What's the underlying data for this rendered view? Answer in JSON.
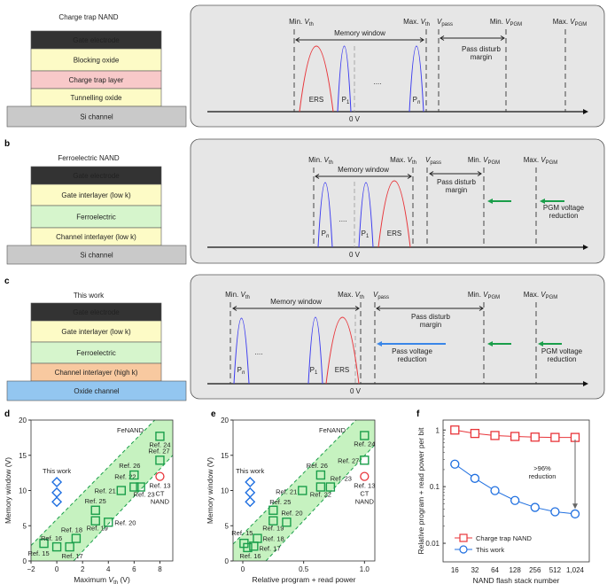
{
  "colors": {
    "panel_bg": "#e6e6e6",
    "ers": "#e8353a",
    "program": "#3b3bf0",
    "fe": "#1a9e4a",
    "this_work": "#1f6fe0",
    "ct_nand": "#e8353a",
    "band": "#c6f2c0",
    "pass_arrow": "#3a86e8"
  },
  "panels": {
    "a": {
      "letter": "a",
      "stack_title": "Charge trap NAND",
      "layers": [
        {
          "label": "Gate electrode",
          "color": "#333333"
        },
        {
          "label": "Blocking oxide",
          "color": "#fdfbc6"
        },
        {
          "label": "Charge trap layer",
          "color": "#f8c9c9"
        },
        {
          "label": "Tunnelling oxide",
          "color": "#fdfbc6"
        },
        {
          "label": "Si channel",
          "color": "#c9c9c9"
        }
      ],
      "thresholds": [
        {
          "pre": "Min. ",
          "v": "V",
          "sub": "th"
        },
        {
          "pre": "Max. ",
          "v": "V",
          "sub": "th"
        },
        {
          "pre": "",
          "v": "V",
          "sub": "pass"
        },
        {
          "pre": "Min. ",
          "v": "V",
          "sub": "PGM"
        },
        {
          "pre": "Max. ",
          "v": "V",
          "sub": "PGM"
        }
      ],
      "memory_window": "Memory window",
      "pass_disturb": [
        "Pass disturb",
        "margin"
      ],
      "states": {
        "ers": "ERS",
        "p1": {
          "p": "P",
          "sub": "1"
        },
        "pn": {
          "p": "P",
          "sub": "n"
        },
        "dots": "...."
      },
      "zero": "0 V"
    },
    "b": {
      "letter": "b",
      "stack_title": "Ferroelectric NAND",
      "layers": [
        {
          "label": "Gate electrode",
          "color": "#333333"
        },
        {
          "label": "Gate interlayer (low k)",
          "color": "#fdfbc6"
        },
        {
          "label": "Ferroelectric",
          "color": "#d6f5cc"
        },
        {
          "label": "Channel interlayer (low k)",
          "color": "#fdfbc6"
        },
        {
          "label": "Si channel",
          "color": "#c9c9c9"
        }
      ],
      "thresholds": [
        {
          "pre": "Min. ",
          "v": "V",
          "sub": "th"
        },
        {
          "pre": "Max. ",
          "v": "V",
          "sub": "th"
        },
        {
          "pre": "",
          "v": "V",
          "sub": "pass"
        },
        {
          "pre": "Min. ",
          "v": "V",
          "sub": "PGM"
        },
        {
          "pre": "Max. ",
          "v": "V",
          "sub": "PGM"
        }
      ],
      "memory_window": "Memory window",
      "pass_disturb": [
        "Pass disturb",
        "margin"
      ],
      "pgm_reduction": [
        "PGM voltage",
        "reduction"
      ],
      "states": {
        "ers": "ERS",
        "p1": {
          "p": "P",
          "sub": "1"
        },
        "pn": {
          "p": "P",
          "sub": "n"
        },
        "dots": "...."
      },
      "zero": "0 V"
    },
    "c": {
      "letter": "c",
      "stack_title": "This work",
      "layers": [
        {
          "label": "Gate electrode",
          "color": "#333333"
        },
        {
          "label": "Gate interlayer (low k)",
          "color": "#fdfbc6"
        },
        {
          "label": "Ferroelectric",
          "color": "#d6f5cc"
        },
        {
          "label": "Channel interlayer (high k)",
          "color": "#f8c9a0"
        },
        {
          "label": "Oxide channel",
          "color": "#93c6f0"
        }
      ],
      "thresholds": [
        {
          "pre": "Min. ",
          "v": "V",
          "sub": "th"
        },
        {
          "pre": "Max. ",
          "v": "V",
          "sub": "th"
        },
        {
          "pre": "",
          "v": "V",
          "sub": "pass"
        },
        {
          "pre": "Min. ",
          "v": "V",
          "sub": "PGM"
        },
        {
          "pre": "Max. ",
          "v": "V",
          "sub": "PGM"
        }
      ],
      "memory_window": "Memory window",
      "pass_disturb": [
        "Pass disturb",
        "margin"
      ],
      "pass_reduction": [
        "Pass voltage",
        "reduction"
      ],
      "pgm_reduction": [
        "PGM voltage",
        "reduction"
      ],
      "states": {
        "ers": "ERS",
        "p1": {
          "p": "P",
          "sub": "1"
        },
        "pn": {
          "p": "P",
          "sub": "n"
        },
        "dots": "...."
      },
      "zero": "0 V"
    }
  },
  "chart_data": [
    {
      "letter": "d",
      "type": "scatter",
      "xlabel": {
        "pre": "Maximum ",
        "v": "V",
        "sub": "th",
        "post": " (V)"
      },
      "ylabel": "Memory window (V)",
      "xlim": [
        -2,
        9
      ],
      "ylim": [
        0,
        20
      ],
      "xticks": [
        -2,
        0,
        2,
        4,
        6,
        8
      ],
      "xtick_labels": [
        "−2",
        "0",
        "2",
        "4",
        "6",
        "8"
      ],
      "yticks": [
        0,
        5,
        10,
        15,
        20
      ],
      "band": {
        "label": "FeNAND",
        "upper": [
          [
            -2,
            2.2
          ],
          [
            7.6,
            20
          ]
        ],
        "lower": [
          [
            1.3,
            0
          ],
          [
            9,
            15
          ]
        ]
      },
      "this_work": {
        "label": "This work",
        "points": [
          [
            0,
            11.2
          ],
          [
            0,
            9.7
          ],
          [
            0,
            8.4
          ]
        ]
      },
      "ct_nand": {
        "ref": "Ref. 13",
        "label": [
          "CT",
          "NAND"
        ],
        "x": 8,
        "y": 12
      },
      "refs": [
        {
          "label": "Ref. 15",
          "x": -1,
          "y": 2.5
        },
        {
          "label": "Ref. 16",
          "x": 0,
          "y": 2.0
        },
        {
          "label": "Ref. 17",
          "x": 1,
          "y": 2.0
        },
        {
          "label": "Ref. 18",
          "x": 1.5,
          "y": 3.2
        },
        {
          "label": "Ref. 19",
          "x": 3,
          "y": 5.7
        },
        {
          "label": "Ref. 20",
          "x": 4,
          "y": 5.5
        },
        {
          "label": "Ref. 25",
          "x": 3,
          "y": 7.2
        },
        {
          "label": "Ref. 21",
          "x": 5,
          "y": 10
        },
        {
          "label": "Ref. 22",
          "x": 6,
          "y": 10.5
        },
        {
          "label": "Ref. 23",
          "x": 6.5,
          "y": 10.5
        },
        {
          "label": "Ref. 26",
          "x": 6,
          "y": 12.2
        },
        {
          "label": "Ref. 27",
          "x": 8,
          "y": 14.3
        },
        {
          "label": "Ref. 24",
          "x": 8,
          "y": 17.7
        }
      ]
    },
    {
      "letter": "e",
      "type": "scatter",
      "xlabel": {
        "pre": "Relative program + read power",
        "v": "",
        "sub": "",
        "post": ""
      },
      "ylabel": "Memory window (V)",
      "xlim": [
        -0.08,
        1.085
      ],
      "ylim": [
        0,
        20
      ],
      "xticks": [
        0,
        0.5,
        1.0
      ],
      "xtick_labels": [
        "0",
        "0.5",
        "1.0"
      ],
      "yticks": [
        0,
        5,
        10,
        15,
        20
      ],
      "band": {
        "label": "FeNAND",
        "upper": [
          [
            -0.08,
            2.4
          ],
          [
            0.93,
            20
          ]
        ],
        "lower": [
          [
            0.19,
            0
          ],
          [
            1.085,
            16.5
          ]
        ]
      },
      "this_work": {
        "label": "This work",
        "points": [
          [
            0.06,
            11.2
          ],
          [
            0.06,
            9.7
          ],
          [
            0.06,
            8.4
          ]
        ]
      },
      "ct_nand": {
        "ref": "Ref. 13",
        "label": [
          "CT",
          "NAND"
        ],
        "x": 1.0,
        "y": 12
      },
      "refs": [
        {
          "label": "Ref. 15",
          "x": 0.01,
          "y": 2.5
        },
        {
          "label": "Ref. 16",
          "x": 0.04,
          "y": 1.9
        },
        {
          "label": "Ref. 17",
          "x": 0.09,
          "y": 2.1
        },
        {
          "label": "Ref. 18",
          "x": 0.12,
          "y": 3.2
        },
        {
          "label": "Ref. 19",
          "x": 0.25,
          "y": 5.7
        },
        {
          "label": "Ref. 20",
          "x": 0.36,
          "y": 5.5
        },
        {
          "label": "Ref. 25",
          "x": 0.25,
          "y": 7.2
        },
        {
          "label": "Ref. 21",
          "x": 0.49,
          "y": 10
        },
        {
          "label": "Ref. 22",
          "x": 0.64,
          "y": 10.5
        },
        {
          "label": "Ref. 23",
          "x": 0.72,
          "y": 10.5
        },
        {
          "label": "Ref. 26",
          "x": 0.64,
          "y": 12.2
        },
        {
          "label": "Ref. 27",
          "x": 1.0,
          "y": 14.3
        },
        {
          "label": "Ref. 24",
          "x": 1.0,
          "y": 17.8
        }
      ]
    },
    {
      "letter": "f",
      "type": "line",
      "xlabel": "NAND flash stack number",
      "ylabel": "Relative program + read power per bit",
      "yscale": "log",
      "ylim": [
        0.0047,
        1.5
      ],
      "yticks": [
        0.01,
        0.1,
        1
      ],
      "ytick_labels": [
        "0.01",
        "0.1",
        "1"
      ],
      "categories": [
        "16",
        "32",
        "64",
        "128",
        "256",
        "512",
        "1,024"
      ],
      "series": [
        {
          "name": "Charge trap NAND",
          "marker": "square",
          "color": "#e8353a",
          "values": [
            1.0,
            0.87,
            0.8,
            0.77,
            0.75,
            0.74,
            0.74
          ]
        },
        {
          "name": "This work",
          "marker": "circle",
          "color": "#1f6fe0",
          "values": [
            0.25,
            0.14,
            0.085,
            0.057,
            0.043,
            0.036,
            0.033
          ]
        }
      ],
      "annotation": [
        ">96%",
        "reduction"
      ]
    }
  ]
}
